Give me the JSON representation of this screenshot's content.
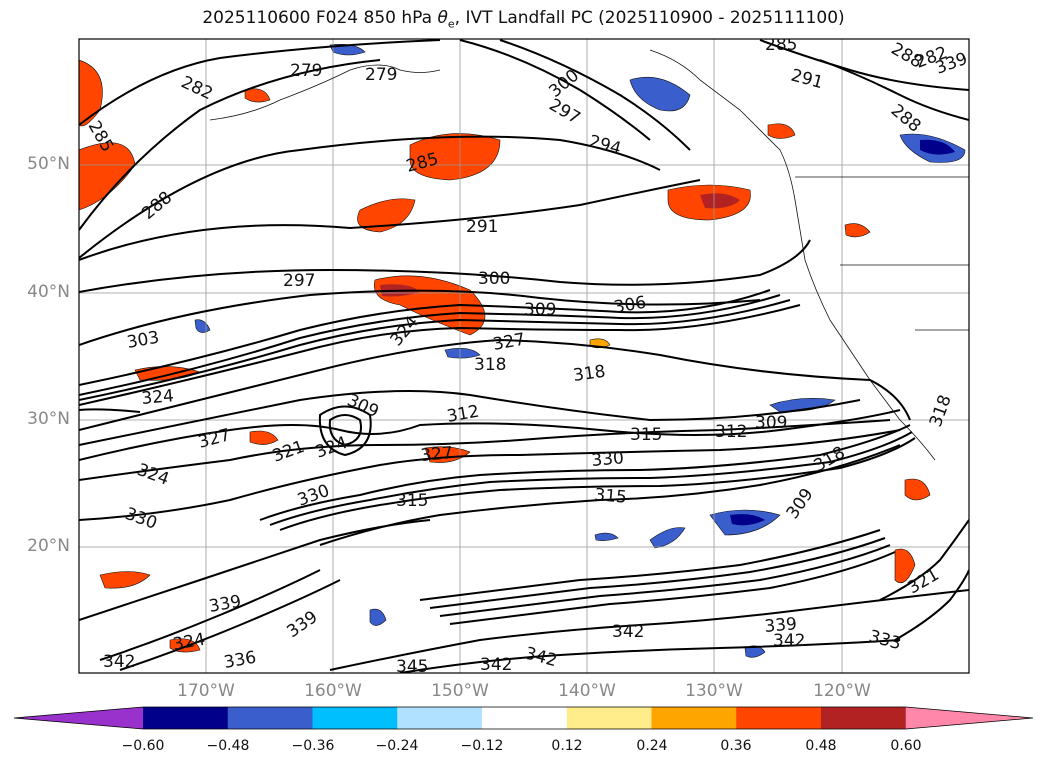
{
  "title": {
    "prefix": "2025110600 F024 850 hPa ",
    "theta": "θ",
    "theta_sub": "e",
    "suffix": ", IVT Landfall PC (2025110900 - 2025111100)"
  },
  "axes": {
    "lat_labels": [
      "50°N",
      "40°N",
      "30°N",
      "20°N"
    ],
    "lon_labels": [
      "170°W",
      "160°W",
      "150°W",
      "140°W",
      "130°W",
      "120°W"
    ]
  },
  "contour_labels": [
    "279",
    "279",
    "282",
    "285",
    "285",
    "288",
    "288",
    "291",
    "294",
    "297",
    "297",
    "300",
    "300",
    "303",
    "306",
    "309",
    "324",
    "327",
    "318",
    "318",
    "324",
    "309",
    "312",
    "327",
    "315",
    "312",
    "309",
    "327",
    "324",
    "321",
    "324",
    "330",
    "330",
    "315",
    "315",
    "330",
    "309",
    "318",
    "339",
    "324",
    "336",
    "339",
    "342",
    "342",
    "339",
    "345",
    "342",
    "342",
    "342",
    "333",
    "321",
    "318",
    "291",
    "285",
    "288",
    "282",
    "339"
  ],
  "colorbar": {
    "ticks": [
      "−0.60",
      "−0.48",
      "−0.36",
      "−0.24",
      "−0.12",
      "0.12",
      "0.24",
      "0.36",
      "0.48",
      "0.60"
    ],
    "colors": [
      "#9932cc",
      "#00008b",
      "#3a5fcd",
      "#00bfff",
      "#b0e2ff",
      "#ffffff",
      "#ffec8b",
      "#ffa500",
      "#ff4500",
      "#b22222",
      "#ff88aa"
    ]
  }
}
